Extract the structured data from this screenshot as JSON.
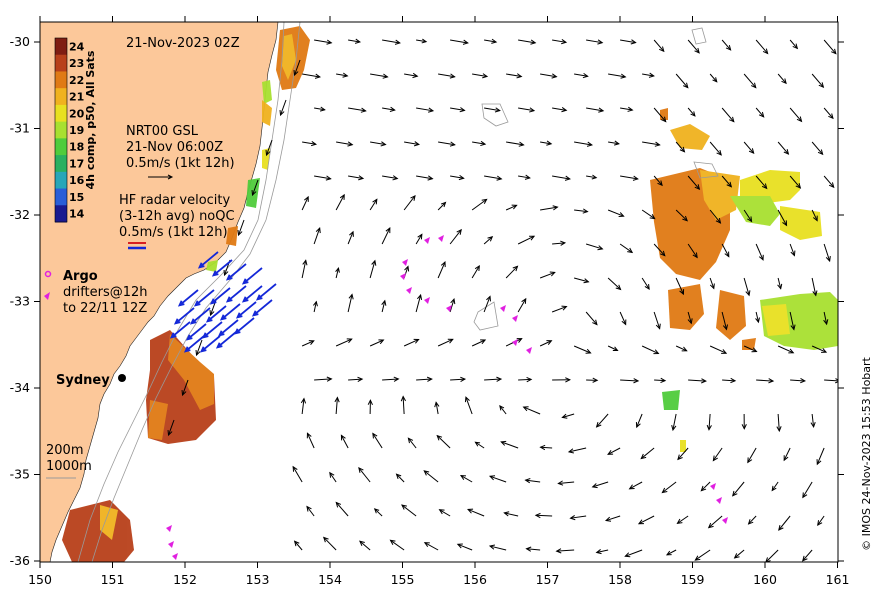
{
  "title": "21-Nov-2023 02Z",
  "colorbar": {
    "label": "4h comp, p50, All Sats",
    "ticks": [
      "24",
      "23",
      "22",
      "21",
      "20",
      "19",
      "18",
      "17",
      "16",
      "15",
      "14"
    ],
    "colors": [
      "#7f1d12",
      "#b8401a",
      "#e07a14",
      "#f0b21e",
      "#e8e020",
      "#a8e030",
      "#50cc3c",
      "#2ab060",
      "#28a6b8",
      "#2a5ed8",
      "#1a1a90"
    ]
  },
  "model_legend": {
    "line1": "NRT00 GSL",
    "line2": "21-Nov 06:00Z",
    "line3": "0.5m/s (1kt 12h)"
  },
  "radar_legend": {
    "line1": "HF radar velocity",
    "line2": "(3-12h avg) noQC",
    "line3": "0.5m/s (1kt 12h)"
  },
  "argo_legend": {
    "title": "Argo",
    "line1": "drifters@12h",
    "line2": "to 22/11 12Z"
  },
  "city": "Sydney",
  "contours": {
    "line1": "200m",
    "line2": "1000m"
  },
  "x_ticks": [
    "150",
    "151",
    "152",
    "153",
    "154",
    "155",
    "156",
    "157",
    "158",
    "159",
    "160",
    "161"
  ],
  "y_ticks": [
    "-30",
    "-31",
    "-32",
    "-33",
    "-34",
    "-35",
    "-36"
  ],
  "credit": "© IMOS 24-Nov-2023 15:53 Hobart",
  "colors": {
    "land": "#fcc89a",
    "vector": "#000000",
    "radar": "#1428d8",
    "argo": "#e020e0"
  }
}
